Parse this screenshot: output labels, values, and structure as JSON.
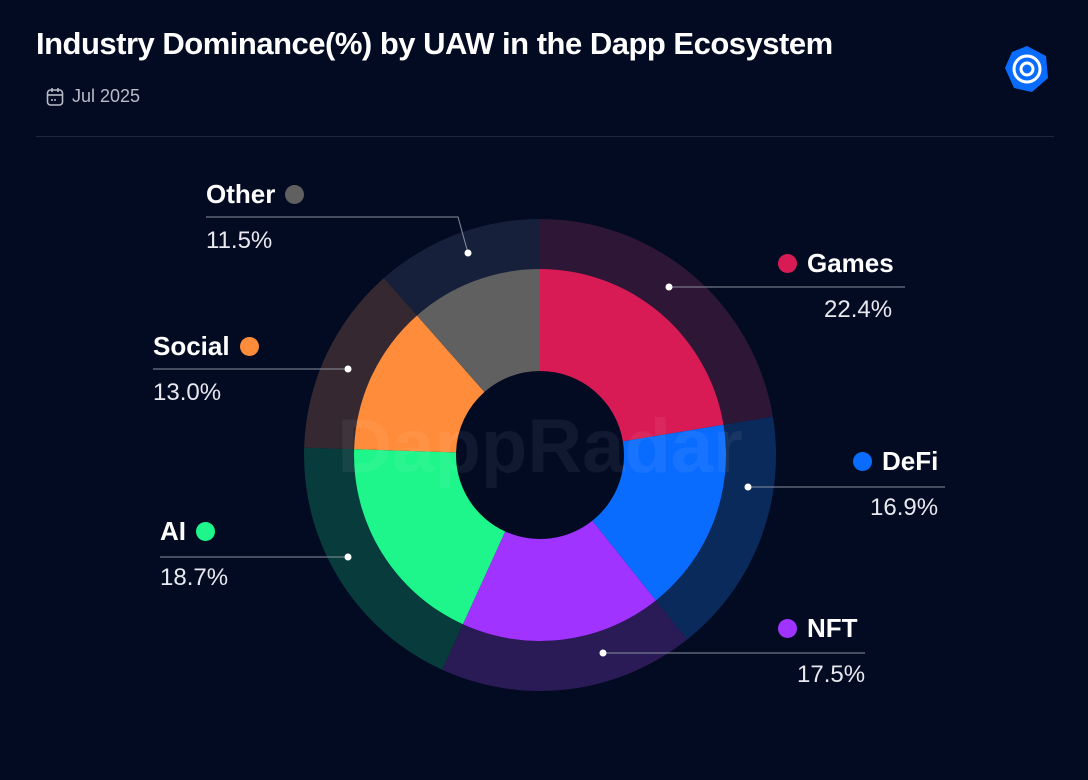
{
  "header": {
    "title": "Industry Dominance(%) by UAW in the Dapp Ecosystem",
    "date": "Jul 2025",
    "date_icon": "calendar-icon",
    "logo_icon": "dappradar-logo-icon"
  },
  "watermark": "DappRadar",
  "chart_data": {
    "type": "pie",
    "donut": true,
    "title": "Industry Dominance(%) by UAW in the Dapp Ecosystem",
    "unit": "%",
    "slices": [
      {
        "label": "Games",
        "value": 22.4,
        "display": "22.4%",
        "color": "#d81b55",
        "ring": "#2e1636"
      },
      {
        "label": "DeFi",
        "value": 16.9,
        "display": "16.9%",
        "color": "#0a6cff",
        "ring": "#0b2a5c"
      },
      {
        "label": "NFT",
        "value": 17.5,
        "display": "17.5%",
        "color": "#a033ff",
        "ring": "#2a1a55"
      },
      {
        "label": "AI",
        "value": 18.7,
        "display": "18.7%",
        "color": "#1ef58a",
        "ring": "#083b3c"
      },
      {
        "label": "Social",
        "value": 13.0,
        "display": "13.0%",
        "color": "#ff8c3a",
        "ring": "#352830"
      },
      {
        "label": "Other",
        "value": 11.5,
        "display": "11.5%",
        "color": "#606060",
        "ring": "#16203a"
      }
    ]
  }
}
